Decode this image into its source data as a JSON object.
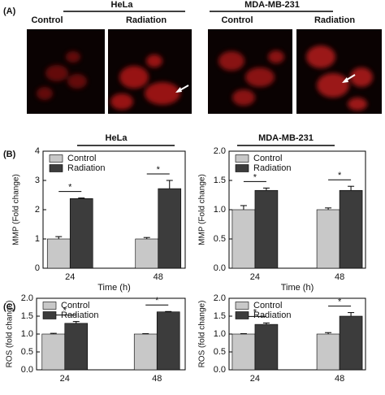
{
  "panel_a": {
    "label": "(A)",
    "groups": [
      {
        "title": "HeLa",
        "images": [
          "Control",
          "Radiation"
        ]
      },
      {
        "title": "MDA-MB-231",
        "images": [
          "Control",
          "Radiation"
        ]
      }
    ]
  },
  "panel_b": {
    "label": "(B)",
    "titles": [
      "HeLa",
      "MDA-MB-231"
    ]
  },
  "panel_c": {
    "label": "(C)"
  },
  "chart_data": [
    {
      "type": "bar",
      "ylabel": "MMP (Fold change)",
      "xlabel": "Time (h)",
      "categories": [
        "24",
        "48"
      ],
      "ylim": [
        0,
        4
      ],
      "yticks": [
        0,
        1,
        2,
        3,
        4
      ],
      "legend": "upper left",
      "annotations": [
        "*",
        "*"
      ],
      "series": [
        {
          "name": "Control",
          "color": "#c8c8c8",
          "values": [
            1.0,
            1.0
          ],
          "errors": [
            0.08,
            0.05
          ]
        },
        {
          "name": "Radiation",
          "color": "#3c3c3c",
          "values": [
            2.38,
            2.72
          ],
          "errors": [
            0.02,
            0.28
          ]
        }
      ]
    },
    {
      "type": "bar",
      "ylabel": "MMP (Fold change)",
      "xlabel": "Time (h)",
      "categories": [
        "24",
        "48"
      ],
      "ylim": [
        0,
        2.0
      ],
      "yticks": [
        {
          "value": 0,
          "label": "0.0"
        },
        0.5,
        {
          "value": 1,
          "label": "1.0"
        },
        1.5,
        {
          "value": 2,
          "label": "2.0"
        }
      ],
      "legend": "upper left",
      "annotations": [
        "*",
        "*"
      ],
      "series": [
        {
          "name": "Control",
          "color": "#c8c8c8",
          "values": [
            1.0,
            1.0
          ],
          "errors": [
            0.07,
            0.03
          ]
        },
        {
          "name": "Radiation",
          "color": "#3c3c3c",
          "values": [
            1.33,
            1.33
          ],
          "errors": [
            0.04,
            0.07
          ]
        }
      ]
    },
    {
      "type": "bar",
      "ylabel": "ROS (fold change)",
      "categories": [
        "24",
        "48"
      ],
      "ylim": [
        0,
        2.0
      ],
      "yticks": [
        {
          "value": 0,
          "label": "0.0"
        },
        0.5,
        {
          "value": 1,
          "label": "1.0"
        },
        1.5,
        {
          "value": 2,
          "label": "2.0"
        }
      ],
      "legend": "upper left",
      "annotations": [
        "*",
        "*"
      ],
      "series": [
        {
          "name": "Control",
          "color": "#c8c8c8",
          "values": [
            1.0,
            1.0
          ],
          "errors": [
            0.02,
            0.01
          ]
        },
        {
          "name": "Radiation",
          "color": "#3c3c3c",
          "values": [
            1.3,
            1.62
          ],
          "errors": [
            0.05,
            0.01
          ]
        }
      ]
    },
    {
      "type": "bar",
      "ylabel": "ROS (fold change)",
      "categories": [
        "24",
        "48"
      ],
      "ylim": [
        0,
        2.0
      ],
      "yticks": [
        {
          "value": 0,
          "label": "0.0"
        },
        0.5,
        {
          "value": 1,
          "label": "1.0"
        },
        1.5,
        {
          "value": 2,
          "label": "2.0"
        }
      ],
      "legend": "upper left",
      "annotations": [
        "*",
        "*"
      ],
      "series": [
        {
          "name": "Control",
          "color": "#c8c8c8",
          "values": [
            1.0,
            1.0
          ],
          "errors": [
            0.01,
            0.04
          ]
        },
        {
          "name": "Radiation",
          "color": "#3c3c3c",
          "values": [
            1.27,
            1.5
          ],
          "errors": [
            0.04,
            0.1
          ]
        }
      ]
    }
  ]
}
